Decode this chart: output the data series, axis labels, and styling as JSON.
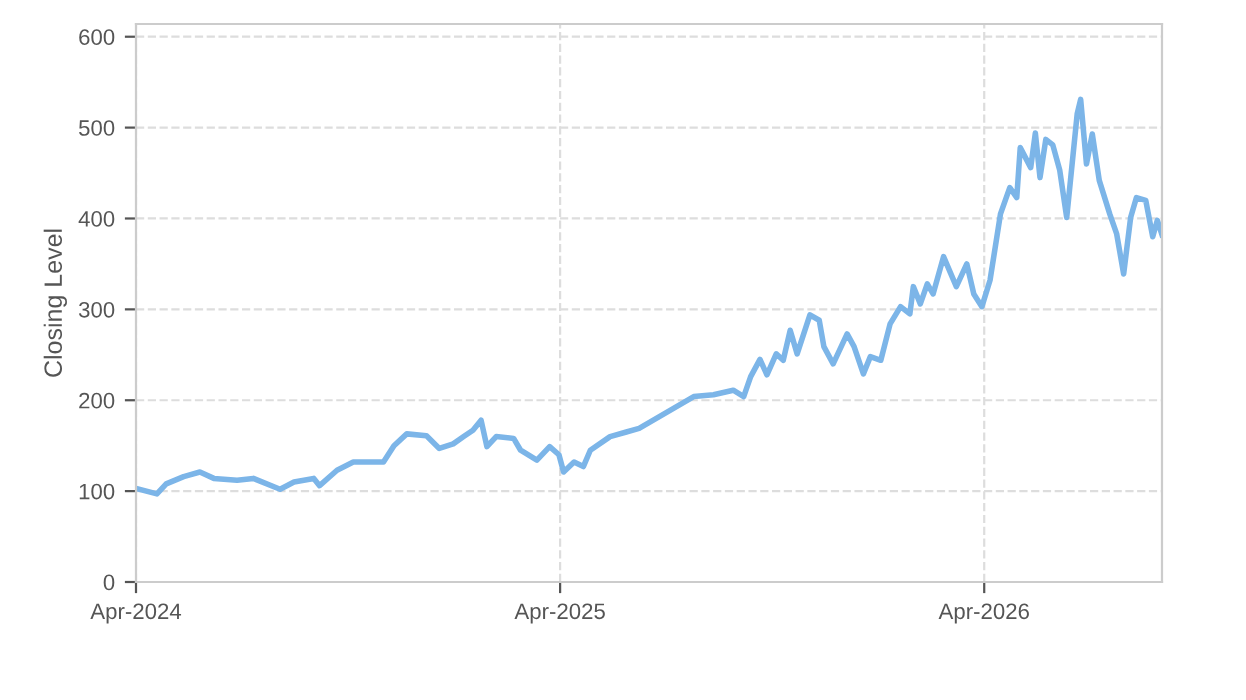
{
  "chart_data": {
    "type": "line",
    "ylabel": "Closing Level",
    "x": [
      "2024-04-01",
      "2024-04-19",
      "2024-04-27",
      "2024-05-12",
      "2024-05-26",
      "2024-06-07",
      "2024-06-27",
      "2024-07-11",
      "2024-08-03",
      "2024-08-15",
      "2024-09-01",
      "2024-09-06",
      "2024-09-21",
      "2024-10-05",
      "2024-10-31",
      "2024-11-09",
      "2024-11-20",
      "2024-12-07",
      "2024-12-18",
      "2024-12-30",
      "2025-01-08",
      "2025-01-16",
      "2025-01-23",
      "2025-01-28",
      "2025-02-05",
      "2025-02-20",
      "2025-02-26",
      "2025-03-12",
      "2025-03-23",
      "2025-03-31",
      "2025-04-04",
      "2025-04-13",
      "2025-04-21",
      "2025-04-27",
      "2025-05-14",
      "2025-05-28",
      "2025-06-08",
      "2025-07-25",
      "2025-08-11",
      "2025-08-28",
      "2025-09-06",
      "2025-09-12",
      "2025-09-20",
      "2025-09-26",
      "2025-10-04",
      "2025-10-10",
      "2025-10-16",
      "2025-10-22",
      "2025-11-02",
      "2025-11-10",
      "2025-11-14",
      "2025-11-22",
      "2025-12-04",
      "2025-12-10",
      "2025-12-18",
      "2025-12-24",
      "2026-01-02",
      "2026-01-10",
      "2026-01-19",
      "2026-01-27",
      "2026-01-30",
      "2026-02-05",
      "2026-02-11",
      "2026-02-16",
      "2026-02-25",
      "2026-03-08",
      "2026-03-17",
      "2026-03-23",
      "2026-03-30",
      "2026-04-06",
      "2026-04-15",
      "2026-04-23",
      "2026-04-29",
      "2026-05-02",
      "2026-05-11",
      "2026-05-15",
      "2026-05-19",
      "2026-05-24",
      "2026-05-30",
      "2026-06-05",
      "2026-06-11",
      "2026-06-20",
      "2026-06-23",
      "2026-06-28",
      "2026-07-03",
      "2026-07-09",
      "2026-07-18",
      "2026-07-24",
      "2026-07-30",
      "2026-08-05",
      "2026-08-10",
      "2026-08-18",
      "2026-08-24",
      "2026-08-28",
      "2026-09-01"
    ],
    "series": [
      {
        "color": "#7cb5e8",
        "values": [
          103,
          97,
          108,
          116,
          121,
          114,
          112,
          114,
          102,
          110,
          114,
          106,
          123,
          132,
          132,
          150,
          163,
          161,
          147,
          152,
          160,
          167,
          178,
          149,
          160,
          158,
          145,
          134,
          149,
          140,
          121,
          132,
          127,
          145,
          160,
          165,
          169,
          204,
          206,
          211,
          204,
          226,
          245,
          228,
          251,
          244,
          277,
          251,
          294,
          288,
          259,
          240,
          273,
          259,
          229,
          248,
          244,
          284,
          303,
          295,
          325,
          306,
          328,
          317,
          358,
          325,
          350,
          317,
          303,
          332,
          405,
          434,
          423,
          478,
          456,
          494,
          445,
          487,
          481,
          453,
          401,
          515,
          531,
          460,
          493,
          442,
          405,
          383,
          339,
          401,
          423,
          420,
          380,
          398,
          382
        ]
      }
    ],
    "xlim": [
      "2024-04-01",
      "2026-09-01"
    ],
    "xticks": [
      {
        "value": "2024-04-01",
        "label": "Apr-2024"
      },
      {
        "value": "2025-04-01",
        "label": "Apr-2025"
      },
      {
        "value": "2026-04-01",
        "label": "Apr-2026"
      }
    ],
    "ylim": [
      0,
      614
    ],
    "yticks": [
      0,
      100,
      200,
      300,
      400,
      500,
      600
    ],
    "grid": true,
    "line_style": "solid",
    "marker": "none"
  }
}
